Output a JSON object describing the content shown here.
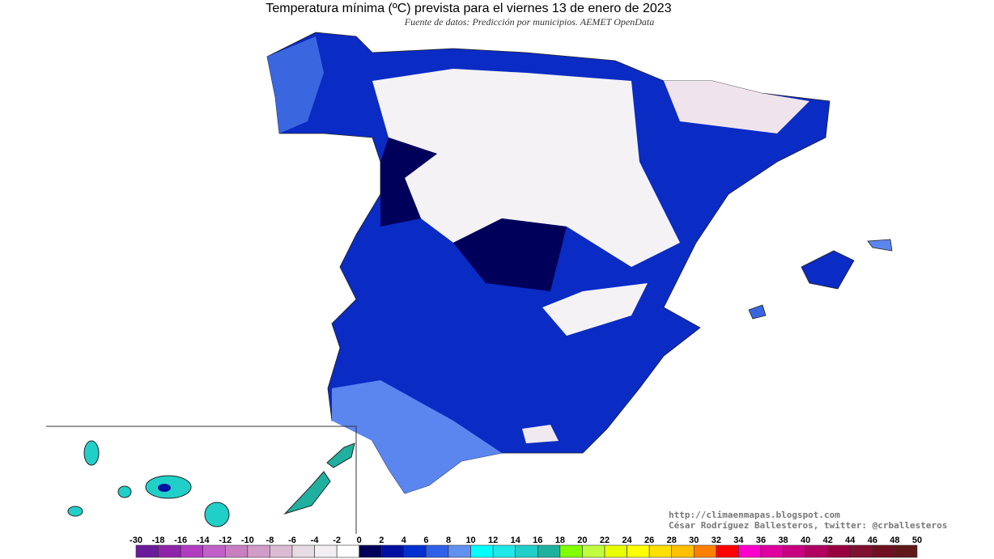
{
  "header": {
    "title": "Temperatura mínima (ºC) prevista para el viernes 13 de enero de 2023",
    "subtitle": "Fuente de datos: Predicción por municipios. AEMET OpenData"
  },
  "credits": {
    "url": "http://climaenmapas.blogspot.com",
    "author": "César Rodríguez Ballesteros, twitter: @crballesteros"
  },
  "legend": {
    "ticks": [
      -30,
      -18,
      -16,
      -14,
      -12,
      -10,
      -8,
      -6,
      -4,
      -2,
      0,
      2,
      4,
      6,
      8,
      10,
      12,
      14,
      16,
      18,
      20,
      22,
      24,
      26,
      28,
      30,
      32,
      34,
      36,
      38,
      40,
      42,
      44,
      46,
      48,
      50
    ],
    "colors": [
      "#6a1b9a",
      "#8e24aa",
      "#b03cc0",
      "#c060c8",
      "#c77fc0",
      "#d09cc8",
      "#dcbcd4",
      "#e8dce4",
      "#f2eef2",
      "#ffffff",
      "#00005a",
      "#0010a0",
      "#0030d0",
      "#3060e8",
      "#6090f0",
      "#00ffff",
      "#20e8e8",
      "#20d0c8",
      "#20b0a0",
      "#80ff00",
      "#c0ff40",
      "#e8ff00",
      "#ffff00",
      "#ffe000",
      "#ffc000",
      "#ff8000",
      "#ff0000",
      "#ff00cc",
      "#e000a0",
      "#c80080",
      "#b00060",
      "#980040",
      "#801030",
      "#701020",
      "#601818"
    ]
  }
}
